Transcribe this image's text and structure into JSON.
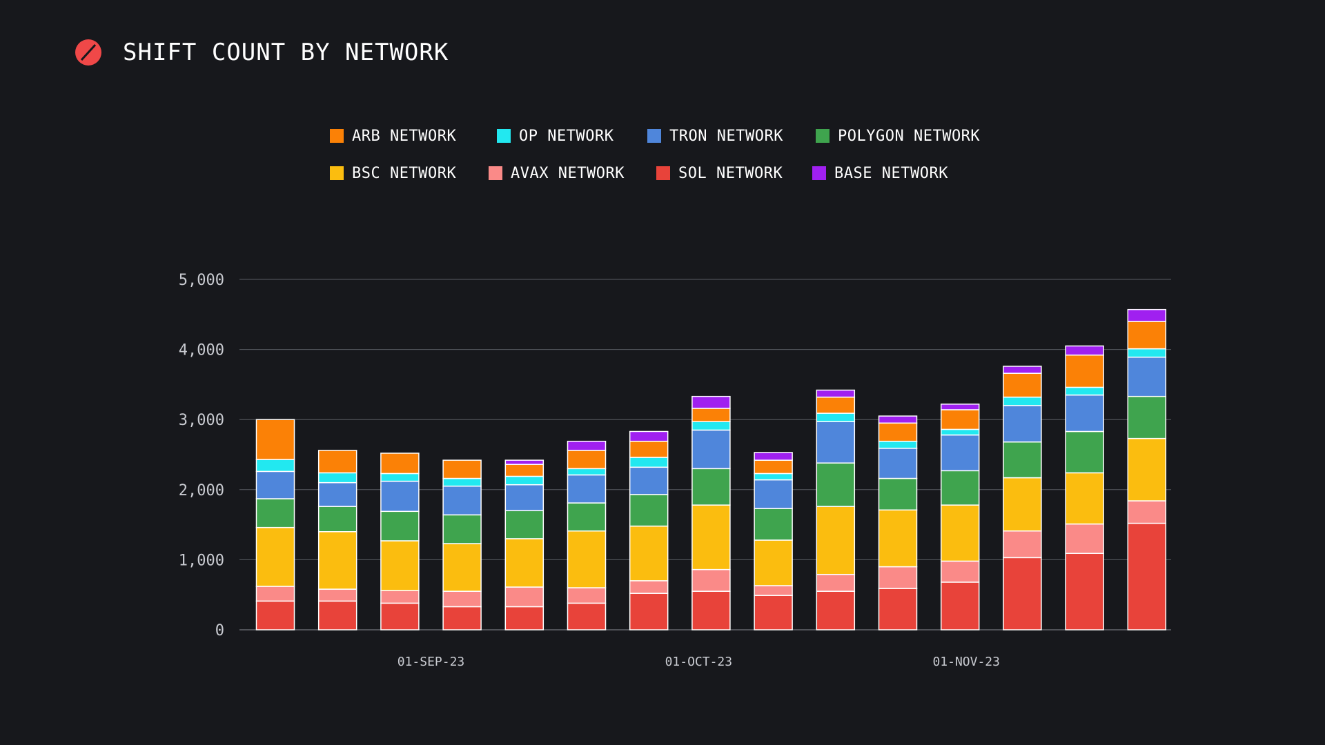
{
  "title": "SHIFT COUNT BY NETWORK",
  "icons": {
    "logo": "slashed-circle-logo-icon"
  },
  "colors": {
    "background": "#17181c",
    "logo": "#f04848",
    "grid": "#5a5c63"
  },
  "legend": [
    {
      "label": "ARB NETWORK",
      "color": "#fb8106"
    },
    {
      "label": "OP NETWORK",
      "color": "#22e8f0"
    },
    {
      "label": "TRON NETWORK",
      "color": "#4f86db"
    },
    {
      "label": "POLYGON NETWORK",
      "color": "#3fa44e"
    },
    {
      "label": "BSC NETWORK",
      "color": "#fbbd0f"
    },
    {
      "label": "AVAX NETWORK",
      "color": "#fa8a88"
    },
    {
      "label": "SOL NETWORK",
      "color": "#e8433a"
    },
    {
      "label": "BASE NETWORK",
      "color": "#a020f0"
    }
  ],
  "chart_data": {
    "type": "bar",
    "stacked": true,
    "grid": true,
    "ylim": [
      0,
      5000
    ],
    "yticks": [
      "0",
      "1,000",
      "2,000",
      "3,000",
      "4,000",
      "5,000"
    ],
    "xtick_labels": [
      {
        "label": "01-SEP-23",
        "at_bar": 2.5
      },
      {
        "label": "01-OCT-23",
        "at_bar": 6.8
      },
      {
        "label": "01-NOV-23",
        "at_bar": 11.1
      }
    ],
    "bar_count": 15,
    "stack_order": [
      "SOL NETWORK",
      "AVAX NETWORK",
      "BSC NETWORK",
      "POLYGON NETWORK",
      "TRON NETWORK",
      "OP NETWORK",
      "ARB NETWORK",
      "BASE NETWORK"
    ],
    "series": [
      {
        "name": "SOL NETWORK",
        "color": "#e8433a",
        "values": [
          410,
          410,
          380,
          330,
          330,
          380,
          520,
          550,
          490,
          550,
          590,
          680,
          1030,
          1090,
          1520
        ]
      },
      {
        "name": "AVAX NETWORK",
        "color": "#fa8a88",
        "values": [
          210,
          170,
          180,
          220,
          280,
          220,
          180,
          310,
          140,
          240,
          310,
          300,
          380,
          420,
          320
        ]
      },
      {
        "name": "BSC NETWORK",
        "color": "#fbbd0f",
        "values": [
          840,
          820,
          710,
          680,
          690,
          810,
          780,
          920,
          650,
          970,
          810,
          800,
          760,
          730,
          890
        ]
      },
      {
        "name": "POLYGON NETWORK",
        "color": "#3fa44e",
        "values": [
          410,
          360,
          420,
          410,
          400,
          400,
          450,
          520,
          450,
          620,
          450,
          490,
          510,
          590,
          600
        ]
      },
      {
        "name": "TRON NETWORK",
        "color": "#4f86db",
        "values": [
          390,
          340,
          430,
          410,
          370,
          400,
          390,
          550,
          410,
          590,
          430,
          510,
          520,
          520,
          560
        ]
      },
      {
        "name": "OP NETWORK",
        "color": "#22e8f0",
        "values": [
          170,
          140,
          110,
          110,
          120,
          90,
          140,
          120,
          90,
          120,
          100,
          80,
          120,
          110,
          120
        ]
      },
      {
        "name": "ARB NETWORK",
        "color": "#fb8106",
        "values": [
          570,
          320,
          290,
          260,
          170,
          260,
          230,
          190,
          190,
          230,
          260,
          280,
          340,
          460,
          390
        ]
      },
      {
        "name": "BASE NETWORK",
        "color": "#a020f0",
        "values": [
          0,
          0,
          0,
          0,
          60,
          130,
          140,
          170,
          110,
          100,
          100,
          80,
          100,
          130,
          170
        ]
      }
    ]
  }
}
